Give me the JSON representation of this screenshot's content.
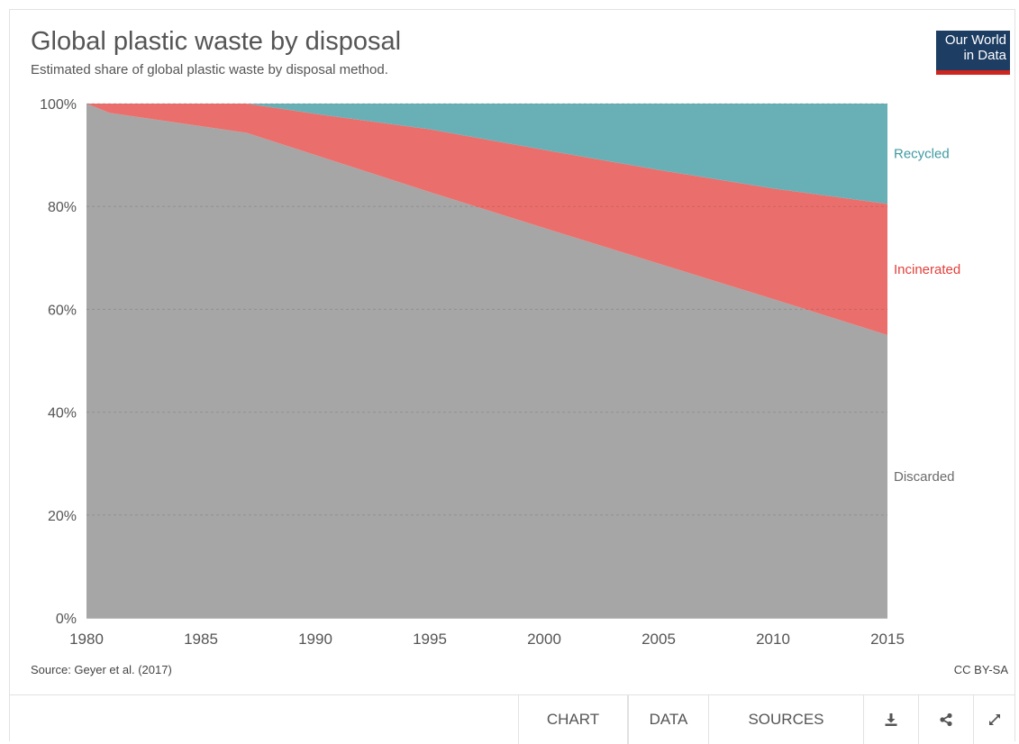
{
  "header": {
    "title": "Global plastic waste by disposal",
    "subtitle": "Estimated share of global plastic waste by disposal method.",
    "logo_line1": "Our World",
    "logo_line2": "in Data"
  },
  "footer": {
    "source": "Source: Geyer et al. (2017)",
    "license": "CC BY-SA"
  },
  "controls": {
    "tab_chart": "CHART",
    "tab_data": "DATA",
    "tab_sources": "SOURCES",
    "download_icon": "download-icon",
    "share_icon": "share-icon",
    "expand_icon": "expand-icon"
  },
  "colors": {
    "discarded": "#a6a6a6",
    "incinerated": "#ea6f6c",
    "recycled": "#69b0b6",
    "recycled_label": "#3f9aa1",
    "incinerated_label": "#e2403b",
    "discarded_label": "#6b6b6b"
  },
  "chart_data": {
    "type": "area",
    "stacked": true,
    "x": [
      1980,
      1981,
      1987,
      1990,
      1995,
      2000,
      2005,
      2010,
      2015
    ],
    "series": [
      {
        "name": "Discarded",
        "values": [
          100,
          98.2,
          94.3,
          90,
          82.8,
          75.8,
          68.9,
          62,
          55
        ]
      },
      {
        "name": "Incinerated",
        "values": [
          0,
          1.8,
          5.7,
          8,
          12.2,
          15.2,
          18.2,
          21.5,
          25.5
        ]
      },
      {
        "name": "Recycled",
        "values": [
          0,
          0,
          0,
          2,
          5,
          9,
          12.9,
          16.5,
          19.5
        ]
      }
    ],
    "xticks": [
      "1980",
      "1985",
      "1990",
      "1995",
      "2000",
      "2005",
      "2010",
      "2015"
    ],
    "yticks": [
      "0%",
      "20%",
      "40%",
      "60%",
      "80%",
      "100%"
    ],
    "xlim": [
      1980,
      2015
    ],
    "ylim": [
      0,
      100
    ],
    "grid": true,
    "legend": "right, inline labels"
  }
}
